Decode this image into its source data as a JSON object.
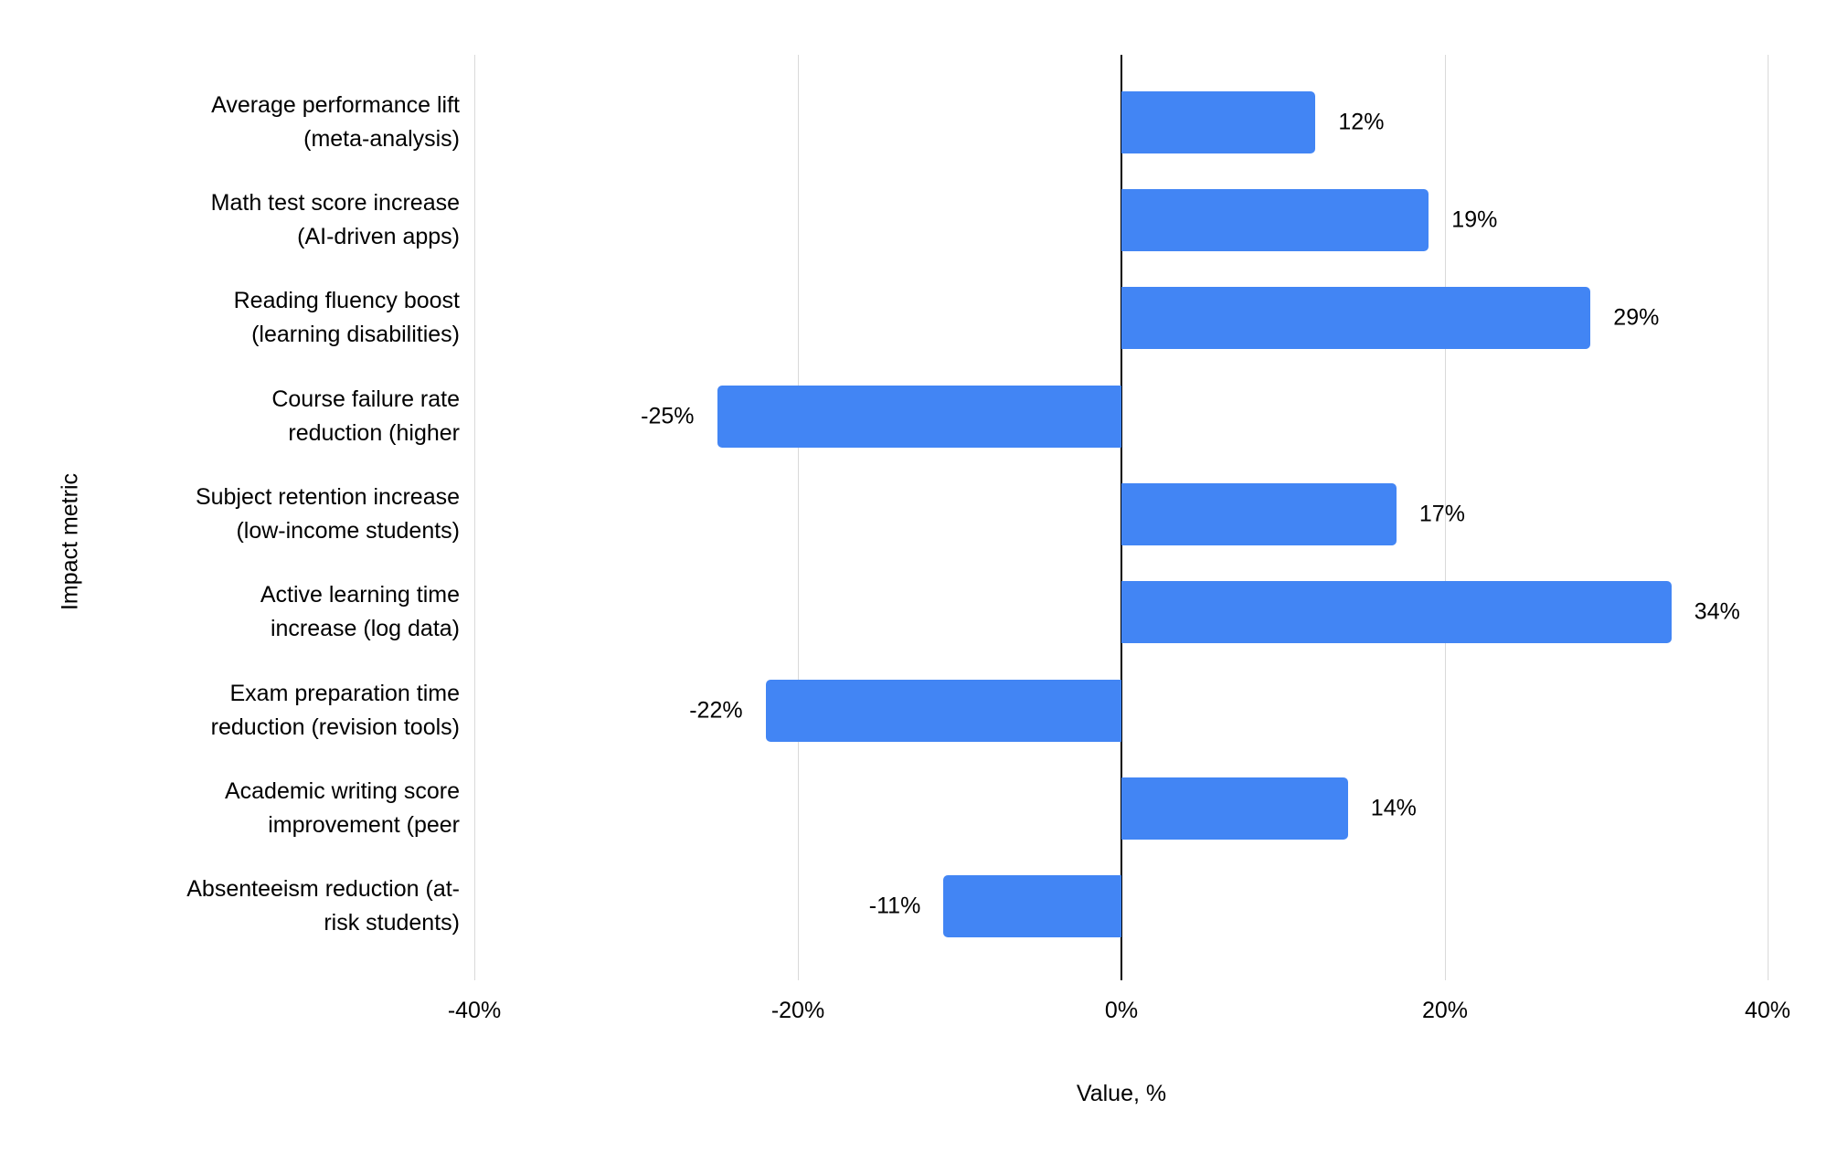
{
  "chart_data": {
    "type": "bar",
    "orientation": "horizontal",
    "title": "",
    "xlabel": "Value, %",
    "ylabel": "Impact metric",
    "xlim": [
      -40,
      40
    ],
    "x_tick_labels": [
      "-40%",
      "-20%",
      "0%",
      "20%",
      "40%"
    ],
    "grid": true,
    "legend": false,
    "bar_color": "#4285F4",
    "gridline_color": "#d9d9d9",
    "axis_line_color": "#000000",
    "categories": [
      "Average performance lift\n(meta-analysis)",
      "Math test score increase\n(AI-driven apps)",
      "Reading fluency boost\n(learning disabilities)",
      "Course failure rate\nreduction (higher",
      "Subject retention increase\n(low-income students)",
      "Active learning time\nincrease (log data)",
      "Exam preparation time\nreduction (revision tools)",
      "Academic writing score\nimprovement (peer",
      "Absenteeism reduction (at-\nrisk students)"
    ],
    "values": [
      12,
      19,
      29,
      -25,
      17,
      34,
      -22,
      14,
      -11
    ],
    "value_labels": [
      "12%",
      "19%",
      "29%",
      "-25%",
      "17%",
      "34%",
      "-22%",
      "14%",
      "-11%"
    ]
  }
}
